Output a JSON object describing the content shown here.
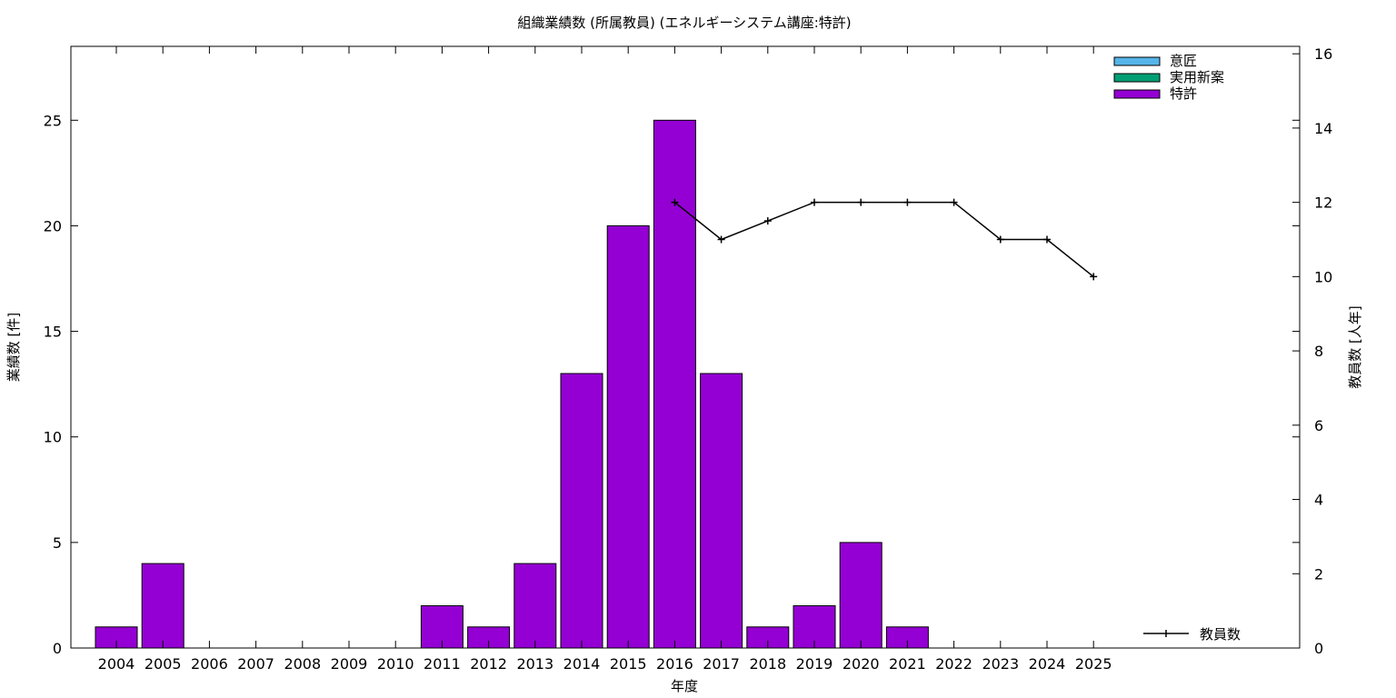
{
  "chart_data": {
    "type": "bar",
    "title": "組織業績数 (所属教員) (エネルギーシステム講座:特許)",
    "xlabel": "年度",
    "ylabel": "業績数 [件]",
    "y2label": "教員数 [人年]",
    "categories": [
      "2004",
      "2005",
      "2006",
      "2007",
      "2008",
      "2009",
      "2010",
      "2011",
      "2012",
      "2013",
      "2014",
      "2015",
      "2016",
      "2017",
      "2018",
      "2019",
      "2020",
      "2021",
      "2022",
      "2023",
      "2024",
      "2025"
    ],
    "ylim": [
      0,
      28.5
    ],
    "yticks": [
      0,
      5,
      10,
      15,
      20,
      25
    ],
    "y2lim": [
      0,
      16.2
    ],
    "y2ticks": [
      0,
      2,
      4,
      6,
      8,
      10,
      12,
      14,
      16
    ],
    "grid": false,
    "legend_position": "top-right",
    "series": [
      {
        "name": "意匠",
        "color": "#56b4e9",
        "values": [
          0,
          0,
          0,
          0,
          0,
          0,
          0,
          0,
          0,
          0,
          0,
          0,
          0,
          0,
          0,
          0,
          0,
          0,
          0,
          0,
          0,
          0
        ]
      },
      {
        "name": "実用新案",
        "color": "#009e73",
        "values": [
          0,
          0,
          0,
          0,
          0,
          0,
          0,
          0,
          0,
          0,
          0,
          0,
          0,
          0,
          0,
          0,
          0,
          0,
          0,
          0,
          0,
          0
        ]
      },
      {
        "name": "特許",
        "color": "#9400d3",
        "values": [
          1,
          4,
          0,
          0,
          0,
          0,
          0,
          2,
          1,
          4,
          13,
          20,
          25,
          13,
          1,
          2,
          5,
          1,
          0,
          0,
          0,
          0
        ]
      }
    ],
    "line_series": {
      "name": "教員数",
      "axis": "y2",
      "color": "#000000",
      "x": [
        "2016",
        "2017",
        "2018",
        "2019",
        "2020",
        "2021",
        "2022",
        "2023",
        "2024",
        "2025"
      ],
      "values": [
        12,
        11,
        11.5,
        12,
        12,
        12,
        12,
        11,
        11,
        10
      ]
    }
  }
}
